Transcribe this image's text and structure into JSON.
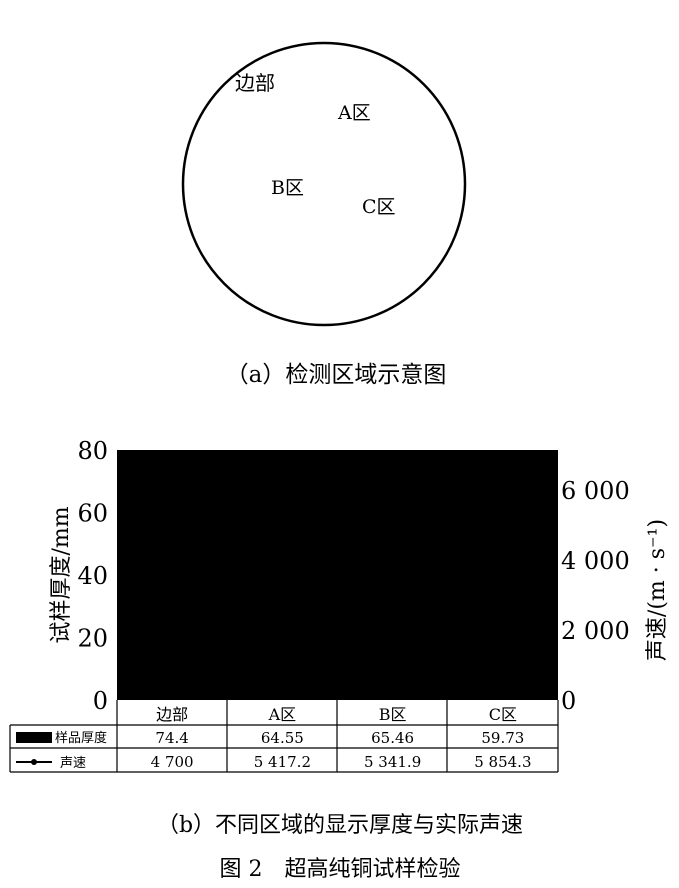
{
  "diagram": {
    "labels": {
      "edge": "边部",
      "a": "A区",
      "b": "B区",
      "c": "C区"
    },
    "caption": "（a）检测区域示意图"
  },
  "chart_data": {
    "type": "bar+line",
    "categories": [
      "边部",
      "A区",
      "B区",
      "C区"
    ],
    "series": [
      {
        "name": "样品厚度",
        "kind": "bar",
        "axis": "left",
        "values": [
          74.4,
          64.55,
          65.46,
          59.73
        ],
        "display": [
          "74.4",
          "64.55",
          "65.46",
          "59.73"
        ]
      },
      {
        "name": "声速",
        "kind": "line",
        "axis": "right",
        "values": [
          4700,
          5417.2,
          5341.9,
          5854.3
        ],
        "display": [
          "4 700",
          "5 417.2",
          "5 341.9",
          "5 854.3"
        ]
      }
    ],
    "ylabel": "试样厚度/mm",
    "ylabel2": "声速/(m · s⁻¹)",
    "ylim": [
      0,
      80
    ],
    "ylim2": [
      0,
      7140
    ],
    "yticks": [
      "0",
      "20",
      "40",
      "60",
      "80"
    ],
    "yticks_values": [
      0,
      20,
      40,
      60,
      80
    ],
    "yticks2": [
      "0",
      "2 000",
      "4 000",
      "6 000"
    ],
    "yticks2_values": [
      0,
      2000,
      4000,
      6000
    ],
    "plot_background": "#000000",
    "data_table": true,
    "caption": "（b）不同区域的显示厚度与实际声速"
  },
  "figure_caption": "图 2　超高纯铜试样检验"
}
